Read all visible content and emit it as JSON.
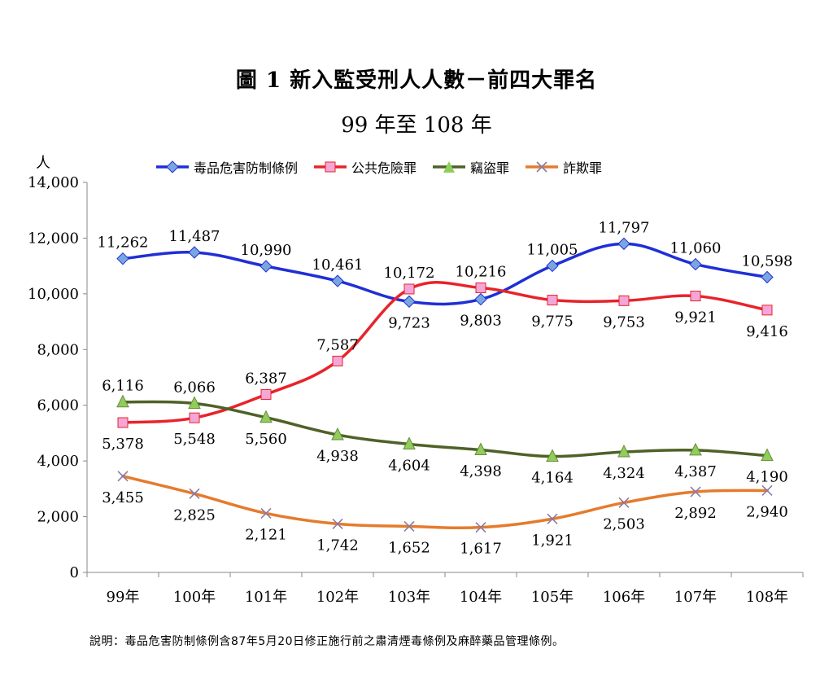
{
  "chart_data": {
    "type": "line",
    "title": "圖 1  新入監受刑人人數－前四大罪名",
    "subtitle": "99 年至 108 年",
    "ylabel": "人",
    "xlabel": "",
    "categories": [
      "99年",
      "100年",
      "101年",
      "102年",
      "103年",
      "104年",
      "105年",
      "106年",
      "107年",
      "108年"
    ],
    "ylim": [
      0,
      14000
    ],
    "yticks": [
      "0",
      "2,000",
      "4,000",
      "6,000",
      "8,000",
      "10,000",
      "12,000",
      "14,000"
    ],
    "grid": false,
    "legend_position": "top",
    "series": [
      {
        "name": "毒品危害防制條例",
        "color": "#1f2fd6",
        "marker": "diamond",
        "marker_color": "#7aa6e0",
        "values": [
          11262,
          11487,
          10990,
          10461,
          9723,
          9803,
          11005,
          11797,
          11060,
          10598
        ],
        "labels": [
          "11,262",
          "11,487",
          "10,990",
          "10,461",
          "9,723",
          "9,803",
          "11,005",
          "11,797",
          "11,060",
          "10,598"
        ],
        "label_pos": [
          "above",
          "above",
          "above",
          "above",
          "below",
          "below",
          "above",
          "above",
          "above",
          "above"
        ]
      },
      {
        "name": "公共危險罪",
        "color": "#e8232a",
        "marker": "square",
        "marker_color": "#f4a6d8",
        "values": [
          5378,
          5548,
          6387,
          7587,
          10172,
          10216,
          9775,
          9753,
          9921,
          9416
        ],
        "labels": [
          "5,378",
          "5,548",
          "6,387",
          "7,587",
          "10,172",
          "10,216",
          "9,775",
          "9,753",
          "9,921",
          "9,416"
        ],
        "label_pos": [
          "below",
          "below",
          "above",
          "above",
          "above",
          "above",
          "below",
          "below",
          "below",
          "below"
        ]
      },
      {
        "name": "竊盜罪",
        "color": "#4e6227",
        "marker": "triangle",
        "marker_color": "#8fce5a",
        "values": [
          6116,
          6066,
          5560,
          4938,
          4604,
          4398,
          4164,
          4324,
          4387,
          4190
        ],
        "labels": [
          "6,116",
          "6,066",
          "5,560",
          "4,938",
          "4,604",
          "4,398",
          "4,164",
          "4,324",
          "4,387",
          "4,190"
        ],
        "label_pos": [
          "above",
          "above",
          "below",
          "below",
          "below",
          "below",
          "below",
          "below",
          "below",
          "below"
        ]
      },
      {
        "name": "詐欺罪",
        "color": "#e57b2c",
        "marker": "x",
        "marker_color": "#8a7aa6",
        "values": [
          3455,
          2825,
          2121,
          1742,
          1652,
          1617,
          1921,
          2503,
          2892,
          2940
        ],
        "labels": [
          "3,455",
          "2,825",
          "2,121",
          "1,742",
          "1,652",
          "1,617",
          "1,921",
          "2,503",
          "2,892",
          "2,940"
        ],
        "label_pos": [
          "below",
          "below",
          "below",
          "below",
          "below",
          "below",
          "below",
          "below",
          "below",
          "below"
        ]
      }
    ]
  },
  "footnote": "說明：毒品危害防制條例含87年5月20日修正施行前之肅清煙毒條例及麻醉藥品管理條例。"
}
